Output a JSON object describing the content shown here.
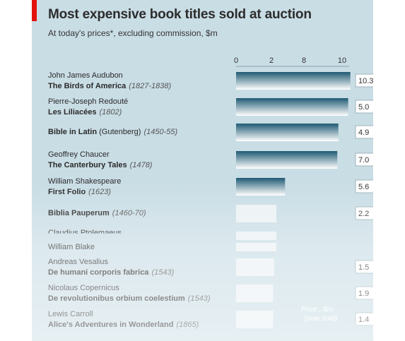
{
  "header": {
    "title": "Most expensive book titles sold at auction",
    "subtitle": "At today's prices*, excluding commission, $m"
  },
  "colors": {
    "background": "#c9dde5",
    "bar_dark": "#1f5a73",
    "bar_light": "#e8f0f3",
    "accent_red": "#e3120b"
  },
  "chart_data": {
    "type": "bar",
    "orientation": "horizontal",
    "title": "Most expensive book titles sold at auction",
    "subtitle": "At today's prices*, excluding commission, $m",
    "x_ticks": [
      "0",
      "2",
      "8",
      "10"
    ],
    "xlim": [
      0,
      10.5
    ],
    "value_box_header": [
      "Price , $m",
      "(year sold)"
    ],
    "rows": [
      {
        "author": "John James Audubon",
        "title": "The Birds of America",
        "date": "(1827-1838)",
        "value": 10.5,
        "price_text": "10.3"
      },
      {
        "author": "Pierre-Joseph Redouté",
        "title": "Les Liliacées",
        "date": "(1802)",
        "value": 10.3,
        "price_text": "5.0"
      },
      {
        "author": "",
        "title": "Bible in Latin",
        "title_suffix": " (Gutenberg)",
        "date": "(1450-55)",
        "value": 9.4,
        "price_text": "4.9"
      },
      {
        "author": "Geoffrey Chaucer",
        "title": "The Canterbury Tales",
        "date": "(1478)",
        "value": 9.3,
        "price_text": "7.0"
      },
      {
        "author": "William Shakespeare",
        "title": "First Folio",
        "date": "(1623)",
        "value": 4.5,
        "price_text": "5.6"
      },
      {
        "author": "",
        "title": "Biblia Pauperum",
        "date": "(1460-70)",
        "value": 3.7,
        "price_text": "2.2"
      },
      {
        "author": "Claudius Ptolemaeus",
        "title": "",
        "date": "",
        "value": 3.7,
        "price_text": ""
      },
      {
        "author": "William Blake",
        "title": "",
        "date": "",
        "value": 3.7,
        "price_text": ""
      },
      {
        "author": "Andreas Vesalius",
        "title": "De humani corporis fabrica",
        "date": "(1543)",
        "value": 3.5,
        "price_text": "1.5"
      },
      {
        "author": "Nicolaus Copernicus",
        "title": "De revolutionibus orbium coelestium",
        "date": "(1543)",
        "value": 3.4,
        "price_text": "1.9"
      },
      {
        "author": "Lewis Carroll",
        "title": "Alice's Adventures in Wonderland",
        "date": "(1865)",
        "value": 3.4,
        "price_text": "1.4"
      }
    ]
  }
}
